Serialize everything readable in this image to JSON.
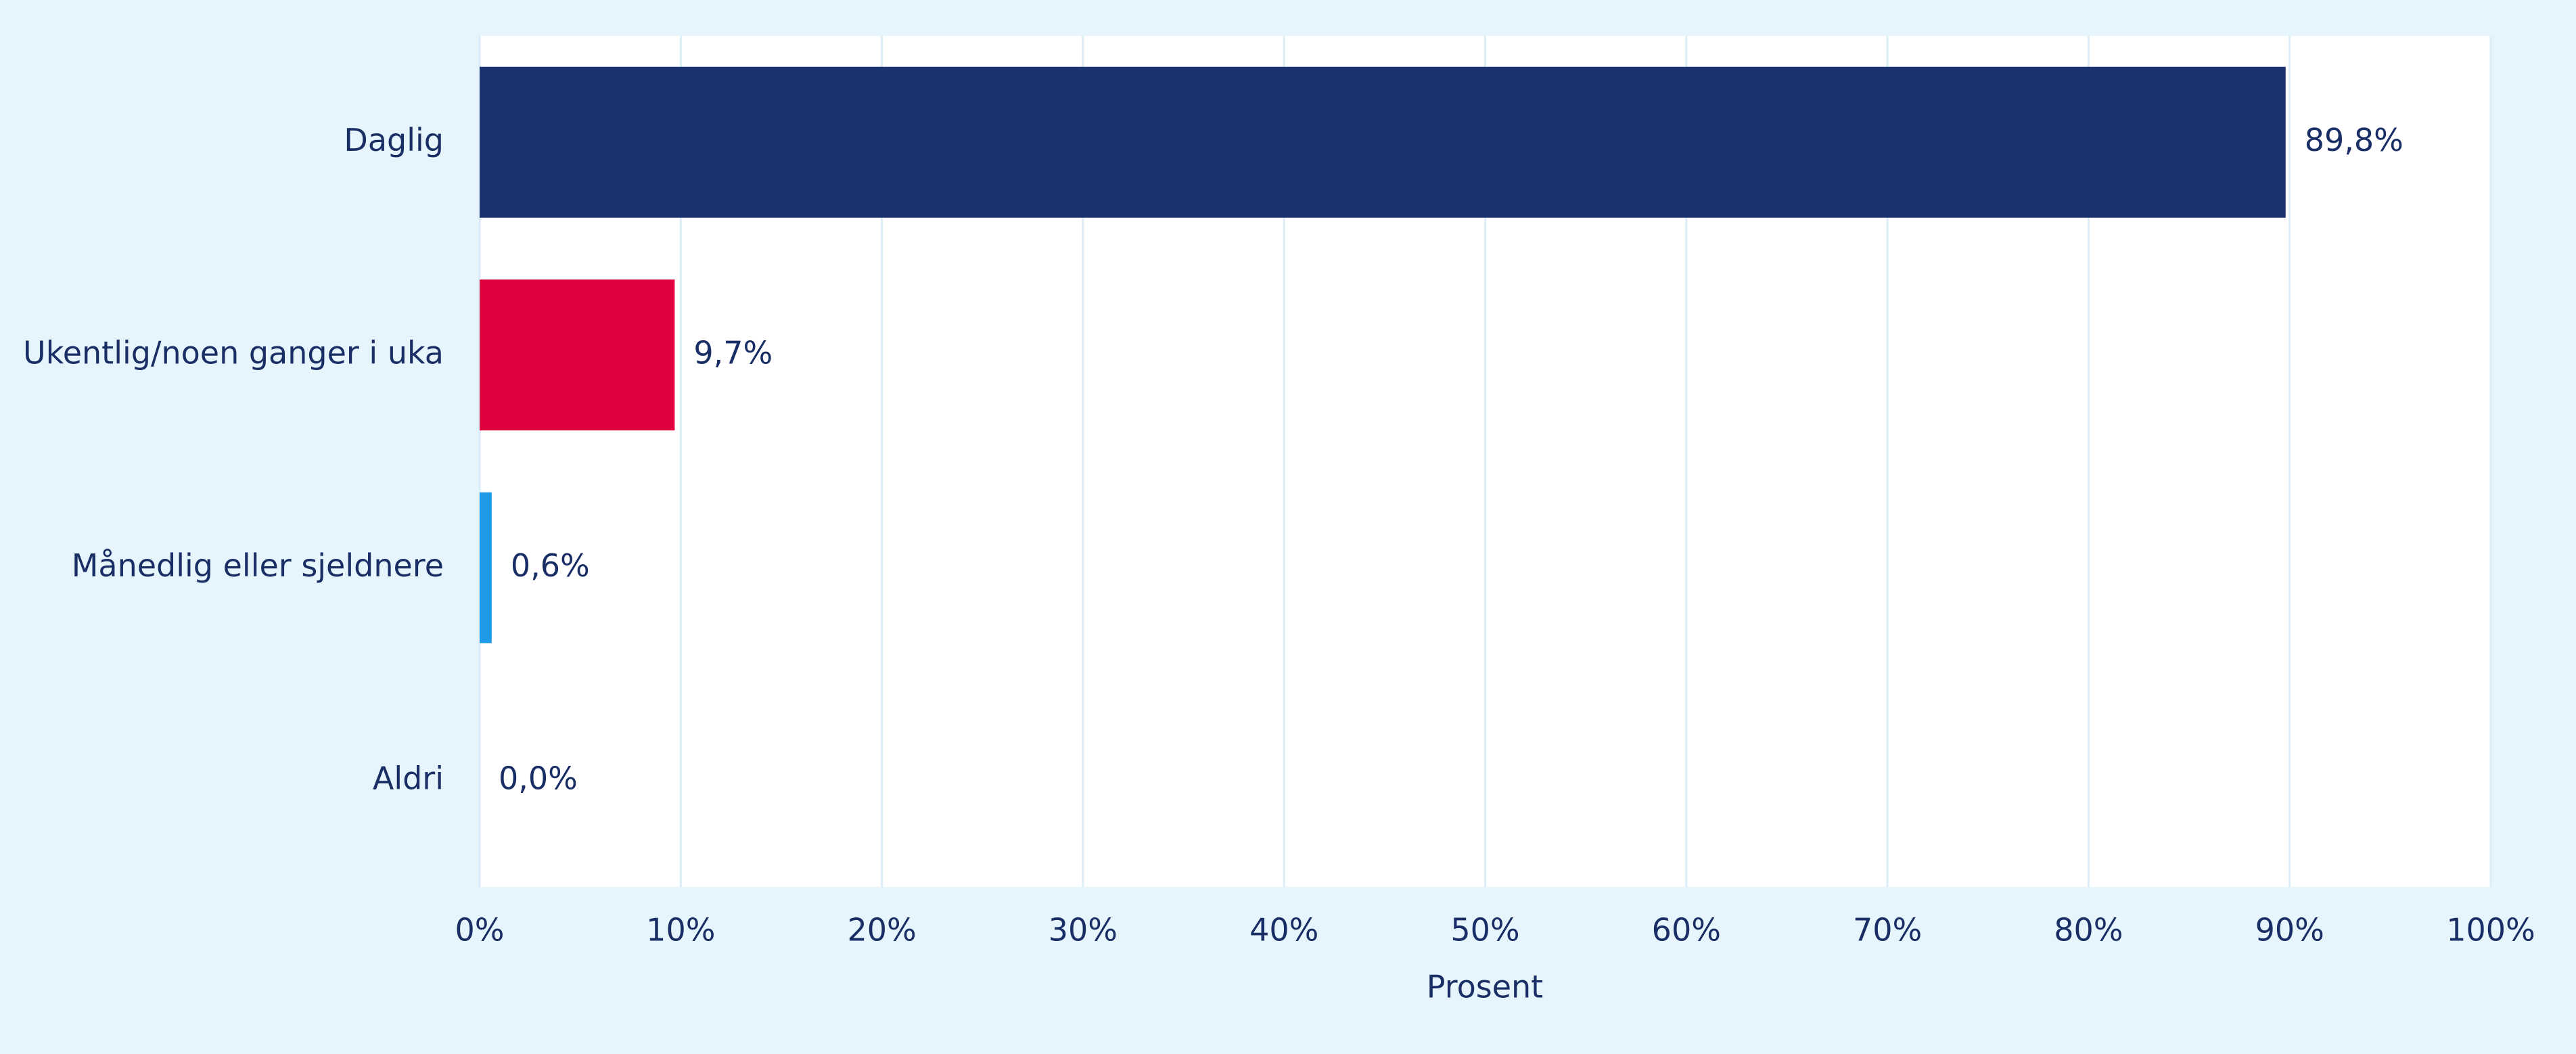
{
  "chart_data": {
    "type": "hbar",
    "categories": [
      "Daglig",
      "Ukentlig/noen ganger i uka",
      "Månedlig eller sjeldnere",
      "Aldri"
    ],
    "values": [
      89.8,
      9.7,
      0.6,
      0.0
    ],
    "value_labels": [
      "89,8%",
      "9,7%",
      "0,6%",
      "0,0%"
    ],
    "colors": [
      "#1a3370",
      "#e0003f",
      "#1e9be8",
      "#7fc8f0"
    ],
    "x_label": "Prosent",
    "xlim": [
      0,
      100
    ],
    "xticks": [
      {
        "value": 0,
        "label": "0%"
      },
      {
        "value": 10,
        "label": "10%"
      },
      {
        "value": 20,
        "label": "20%"
      },
      {
        "value": 30,
        "label": "30%"
      },
      {
        "value": 40,
        "label": "40%"
      },
      {
        "value": 50,
        "label": "50%"
      },
      {
        "value": 60,
        "label": "60%"
      },
      {
        "value": 70,
        "label": "70%"
      },
      {
        "value": 80,
        "label": "80%"
      },
      {
        "value": 90,
        "label": "90%"
      },
      {
        "value": 100,
        "label": "100%"
      }
    ],
    "grid": true
  }
}
